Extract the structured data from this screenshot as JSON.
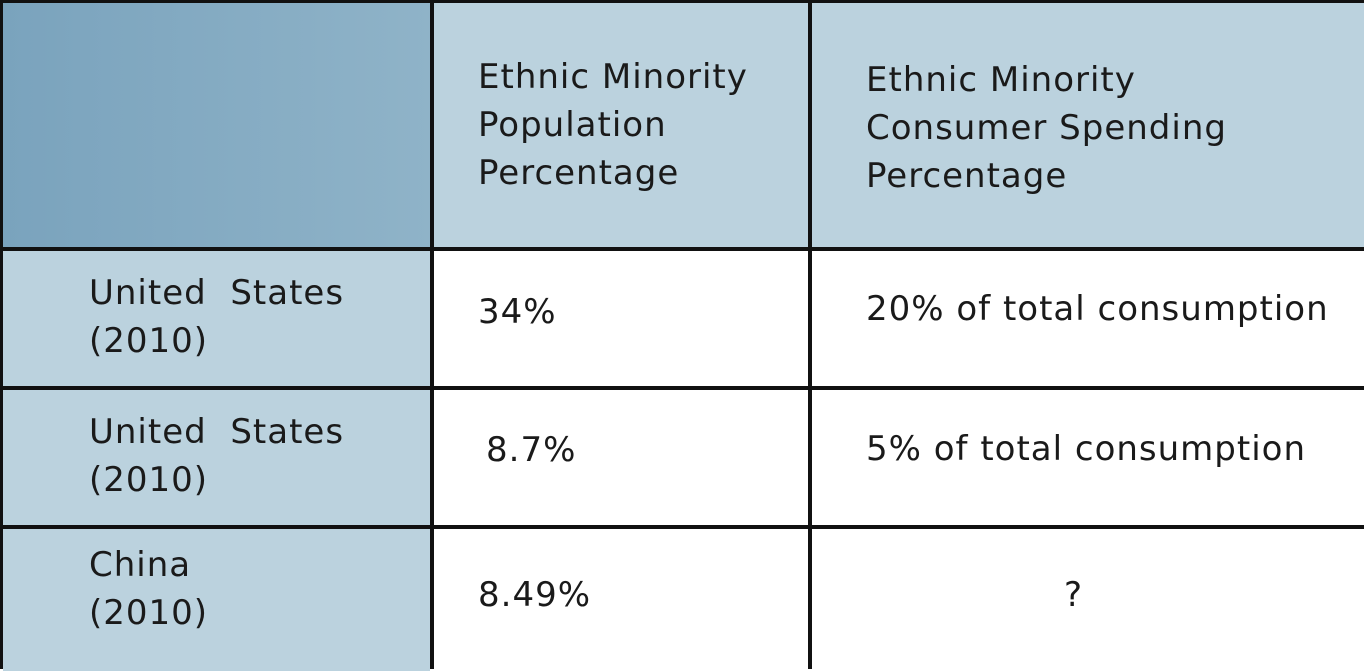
{
  "table": {
    "headers": [
      "",
      "Ethnic Minority\nPopulation\nPercentage",
      "Ethnic Minority\nConsumer Spending\nPercentage"
    ],
    "rows": [
      {
        "label": "United  States\n(2010)",
        "population": "34%",
        "spending": "20% of total consumption"
      },
      {
        "label": "United  States\n(2010)",
        "population": "8.7%",
        "spending": "5% of total consumption"
      },
      {
        "label": "China\n(2010)",
        "population": "8.49%",
        "spending": "?"
      }
    ]
  },
  "colors": {
    "header_corner": "#86acc4",
    "header_bg": "#bbd2de",
    "row_label_bg": "#bbd2de",
    "value_bg": "#ffffff",
    "border": "#111111"
  }
}
